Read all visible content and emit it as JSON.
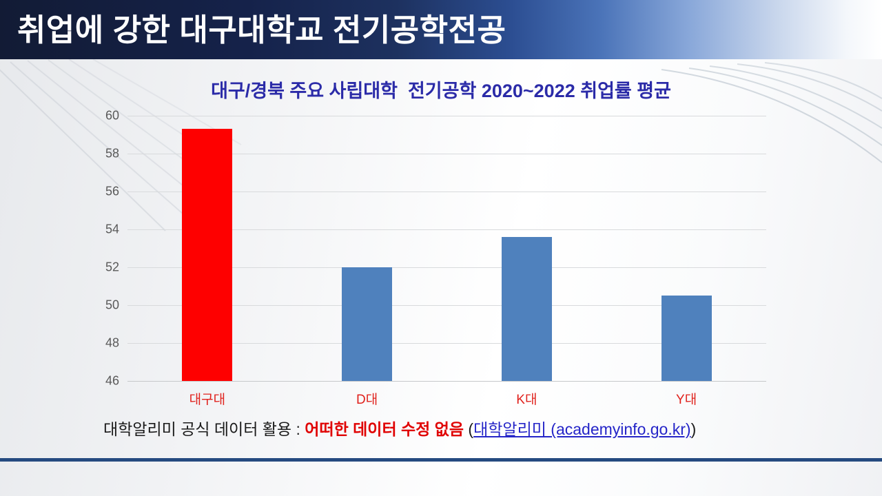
{
  "slide": {
    "header": {
      "title": "취업에 강한 대구대학교 전기공학전공"
    },
    "footer": {
      "prefix": "대학알리미 공식 데이터 활용 : ",
      "emphasis": "어떠한 데이터 수정 없음",
      "paren_open": " (",
      "link": "대학알리미 (academyinfo.go.kr)",
      "paren_close": ")"
    },
    "colors": {
      "header_navy_dark": "#121b35",
      "header_blue_light": "#88a7d9",
      "title_blue": "#2b2ba8",
      "highlight_red": "#fe0000",
      "bar_blue": "#4f81bd",
      "category_label_red": "#e0211c",
      "gridline_gray": "#d8dadc",
      "footer_red": "#e00000",
      "link_blue": "#2525c8",
      "divider_navy": "#254a80"
    }
  },
  "chart_data": {
    "type": "bar",
    "title": "대구/경북 주요 사립대학  전기공학 2020~2022 취업률 평균",
    "categories": [
      "대구대",
      "D대",
      "K대",
      "Y대"
    ],
    "values": [
      59.3,
      52.0,
      53.6,
      50.5
    ],
    "bar_colors": [
      "#fe0000",
      "#4f81bd",
      "#4f81bd",
      "#4f81bd"
    ],
    "xlabel": "",
    "ylabel": "",
    "ylim": [
      46,
      60
    ],
    "yticks": [
      46,
      48,
      50,
      52,
      54,
      56,
      58,
      60
    ],
    "grid": true,
    "legend_position": "none"
  }
}
